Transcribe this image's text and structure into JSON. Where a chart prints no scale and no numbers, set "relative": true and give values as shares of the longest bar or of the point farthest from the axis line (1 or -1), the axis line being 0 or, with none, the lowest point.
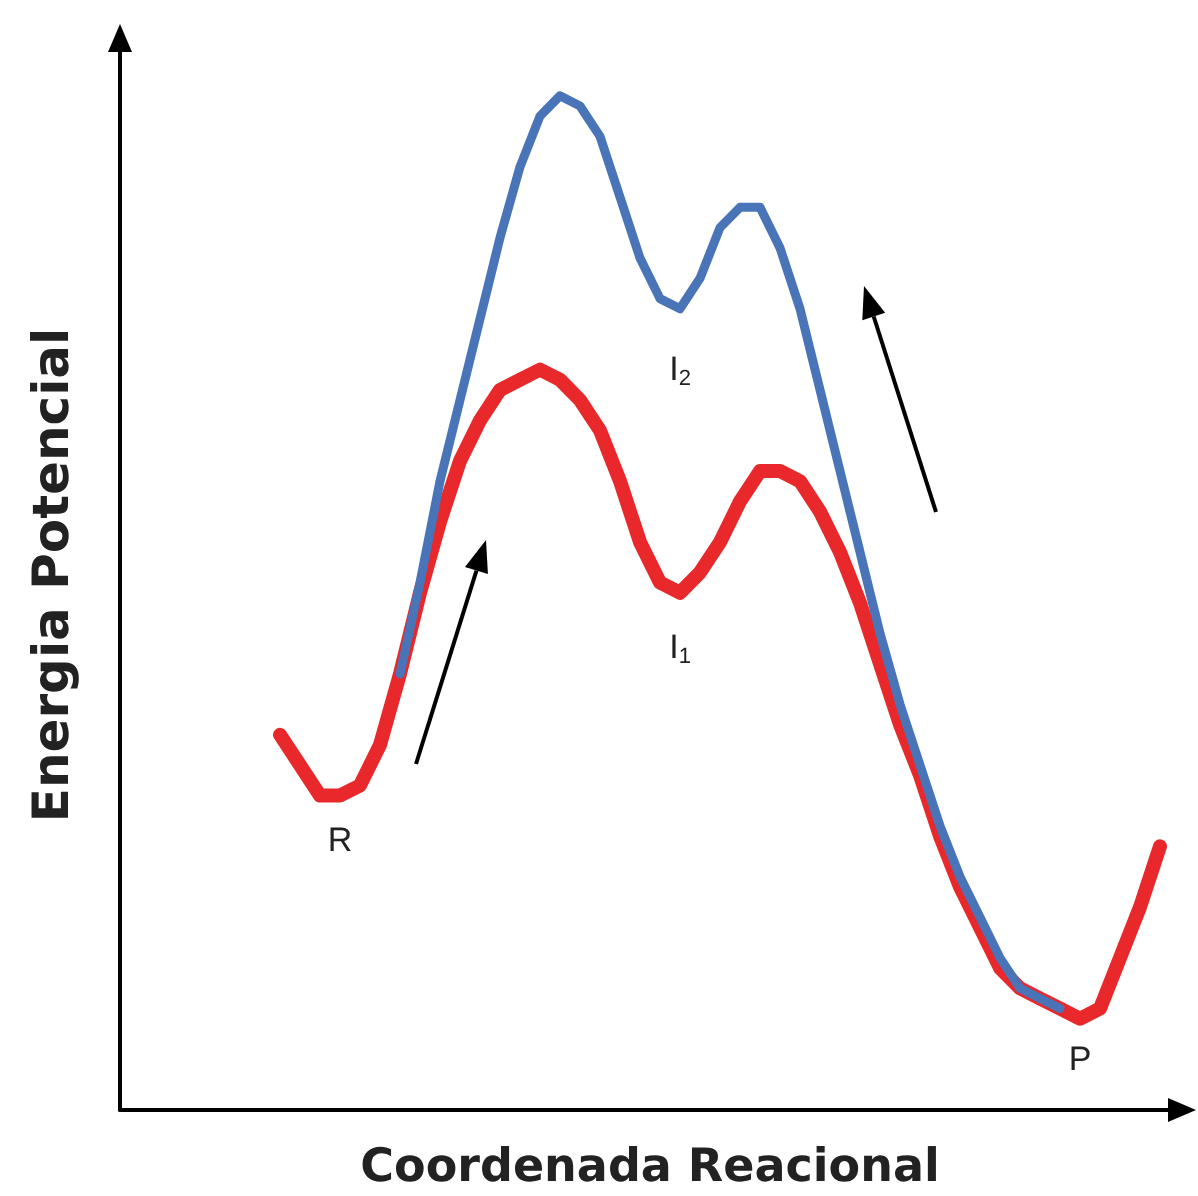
{
  "chart_data": {
    "type": "line",
    "relative": true,
    "xlabel": "Coordenada Reacional",
    "ylabel": "Energia Potencial",
    "categories": [
      null,
      null,
      null,
      null,
      null,
      null,
      null,
      null,
      null,
      null,
      null,
      null,
      null,
      null,
      null,
      null,
      null,
      null,
      null,
      null,
      null,
      null,
      null,
      null,
      null,
      null,
      null,
      null,
      null,
      null,
      null,
      null,
      null,
      null,
      null,
      null,
      null,
      null,
      null,
      null,
      null,
      null,
      null,
      null,
      null,
      null,
      null,
      null,
      null,
      null,
      null,
      null,
      null,
      null
    ],
    "series": [
      {
        "color": "#e8282b",
        "values": [
          null,
          null,
          null,
          null,
          null,
          null,
          null,
          null,
          0.37,
          0.34,
          0.31,
          0.31,
          0.32,
          0.36,
          0.43,
          0.51,
          0.58,
          0.64,
          0.68,
          0.71,
          0.72,
          0.73,
          0.72,
          0.7,
          0.67,
          0.62,
          0.56,
          0.52,
          0.51,
          0.53,
          0.56,
          0.6,
          0.63,
          0.63,
          0.62,
          0.59,
          0.55,
          0.5,
          0.44,
          0.38,
          0.33,
          0.27,
          0.22,
          0.18,
          0.14,
          0.12,
          0.11,
          0.1,
          0.09,
          0.1,
          0.15,
          0.2,
          0.26,
          null
        ]
      },
      {
        "color": "#4a74b8",
        "values": [
          null,
          null,
          null,
          null,
          null,
          null,
          null,
          null,
          null,
          null,
          null,
          null,
          null,
          null,
          0.43,
          0.52,
          0.62,
          0.7,
          0.78,
          0.86,
          0.93,
          0.98,
          1,
          0.99,
          0.96,
          0.9,
          0.84,
          0.8,
          0.79,
          0.82,
          0.87,
          0.89,
          0.89,
          0.85,
          0.79,
          0.71,
          0.63,
          0.55,
          0.47,
          0.4,
          0.34,
          0.28,
          0.23,
          0.19,
          0.15,
          0.12,
          0.11,
          0.1,
          null,
          null,
          null,
          null,
          null,
          null
        ]
      }
    ],
    "annotations": [
      "R",
      "I$_{2}$",
      "I$_{1}$",
      "P"
    ]
  }
}
